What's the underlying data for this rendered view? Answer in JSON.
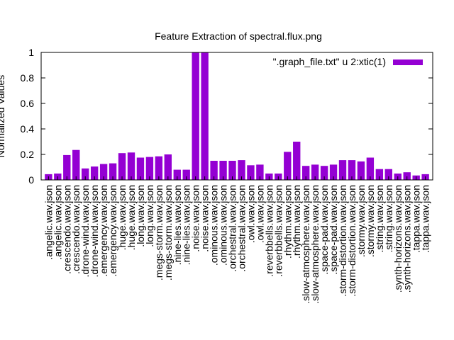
{
  "chart_data": {
    "type": "bar",
    "title": "Feature Extraction of spectral.flux.png",
    "xlabel": "",
    "ylabel": "Normalized Values",
    "ylim": [
      0,
      1
    ],
    "yticks": [
      "0",
      "0.2",
      "0.4",
      "0.6",
      "0.8",
      "1"
    ],
    "legend": {
      "label": "\".graph_file.txt\" u 2:xtic(1)",
      "placement": "top-right"
    },
    "bar_color": "#9400d3",
    "grid": false,
    "categories": [
      ".angelic.wav.json",
      ".angelic.wav.json",
      ".crescendo.wav.json",
      ".crescendo.wav.json",
      ".drone-wind.wav.json",
      ".drone-wind.wav.json",
      ".emergency.wav.json",
      ".emergency.wav.json",
      ".huge.wav.json",
      ".huge.wav.json",
      ".long.wav.json",
      ".long.wav.json",
      ".megs-storm.wav.json",
      ".megs-storm.wav.json",
      ".nine-lies.wav.json",
      ".nine-lies.wav.json",
      ".noise.wav.json",
      ".noise.wav.json",
      ".ominous.wav.json",
      ".ominous.wav.json",
      ".orchestral.wav.json",
      ".orchestral.wav.json",
      ".owl.wav.json",
      ".owl.wav.json",
      ".reverbbells.wav.json",
      ".reverbbells.wav.json",
      ".rhythm.wav.json",
      ".rhythm.wav.json",
      ".slow-atmosphere.wav.json",
      ".slow-atmosphere.wav.json",
      ".space-pad.wav.json",
      ".space-pad.wav.json",
      ".storm-distortion.wav.json",
      ".storm-distortion.wav.json",
      ".stormy.wav.json",
      ".stormy.wav.json",
      ".string.wav.json",
      ".string.wav.json",
      ".synth-horizons.wav.json",
      ".synth-horizons.wav.json",
      ".tappa.wav.json",
      ".tappa.wav.json"
    ],
    "values": [
      0.045,
      0.05,
      0.195,
      0.235,
      0.09,
      0.105,
      0.125,
      0.13,
      0.21,
      0.215,
      0.175,
      0.18,
      0.185,
      0.2,
      0.08,
      0.08,
      1.0,
      1.0,
      0.15,
      0.15,
      0.15,
      0.155,
      0.115,
      0.12,
      0.05,
      0.05,
      0.22,
      0.3,
      0.11,
      0.12,
      0.11,
      0.12,
      0.155,
      0.155,
      0.145,
      0.175,
      0.085,
      0.085,
      0.05,
      0.06,
      0.035,
      0.045
    ]
  }
}
